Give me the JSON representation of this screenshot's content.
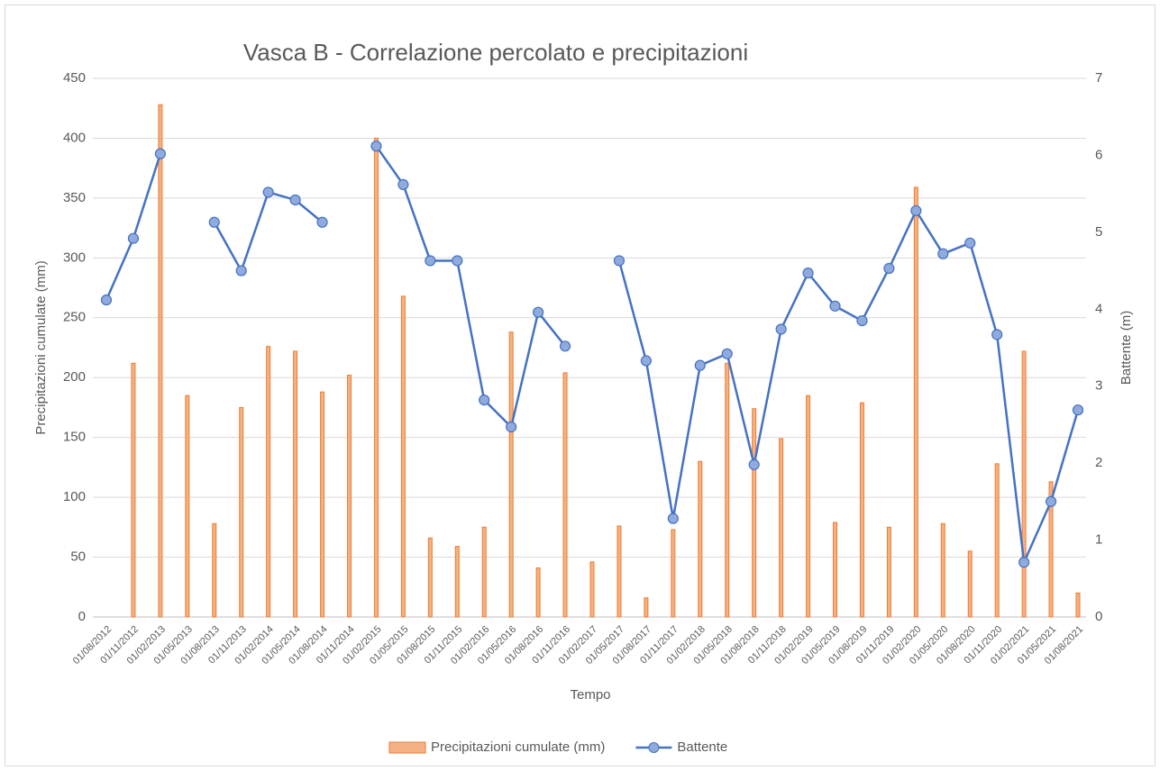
{
  "chart_data": {
    "type": "bar",
    "title": "Vasca B - Correlazione percolato e precipitazioni",
    "x_label": "Tempo",
    "y_label": "Precipitazioni cumulate (mm)",
    "y2_label": "Battente (m)",
    "categories": [
      "01/08/2012",
      "01/11/2012",
      "01/02/2013",
      "01/05/2013",
      "01/08/2013",
      "01/11/2013",
      "01/02/2014",
      "01/05/2014",
      "01/08/2014",
      "01/11/2014",
      "01/02/2015",
      "01/05/2015",
      "01/08/2015",
      "01/11/2015",
      "01/02/2016",
      "01/05/2016",
      "01/08/2016",
      "01/11/2016",
      "01/02/2017",
      "01/05/2017",
      "01/08/2017",
      "01/11/2017",
      "01/02/2018",
      "01/05/2018",
      "01/08/2018",
      "01/11/2018",
      "01/02/2019",
      "01/05/2019",
      "01/08/2019",
      "01/11/2019",
      "01/02/2020",
      "01/05/2020",
      "01/08/2020",
      "01/11/2020",
      "01/02/2021",
      "01/05/2021",
      "01/08/2021"
    ],
    "series": [
      {
        "name": "Precipitazioni cumulate (mm)",
        "type": "bar",
        "color": "#ed7d31",
        "fill": "#f4b183",
        "values": [
          null,
          212,
          428,
          185,
          78,
          175,
          226,
          222,
          188,
          202,
          400,
          268,
          66,
          59,
          75,
          238,
          41,
          204,
          46,
          76,
          16,
          73,
          130,
          212,
          174,
          149,
          185,
          79,
          179,
          75,
          359,
          78,
          55,
          128,
          222,
          113,
          20
        ]
      },
      {
        "name": "Battente",
        "type": "line",
        "axis": "y2",
        "color": "#4472c4",
        "marker_fill": "#8faadc",
        "values": [
          4.12,
          4.92,
          6.02,
          null,
          5.13,
          4.5,
          5.52,
          5.42,
          5.13,
          null,
          6.12,
          5.62,
          4.63,
          4.63,
          2.82,
          2.47,
          3.96,
          3.52,
          null,
          4.63,
          3.33,
          1.28,
          3.27,
          3.42,
          1.98,
          3.74,
          4.47,
          4.04,
          3.85,
          4.53,
          5.28,
          4.72,
          4.86,
          3.67,
          0.71,
          1.5,
          2.69
        ]
      }
    ],
    "ylim": [
      0,
      450
    ],
    "yticks": [
      0,
      50,
      100,
      150,
      200,
      250,
      300,
      350,
      400,
      450
    ],
    "y2lim": [
      0,
      7
    ],
    "y2ticks": [
      0,
      1,
      2,
      3,
      4,
      5,
      6,
      7
    ],
    "grid": true,
    "legend": "bottom"
  }
}
